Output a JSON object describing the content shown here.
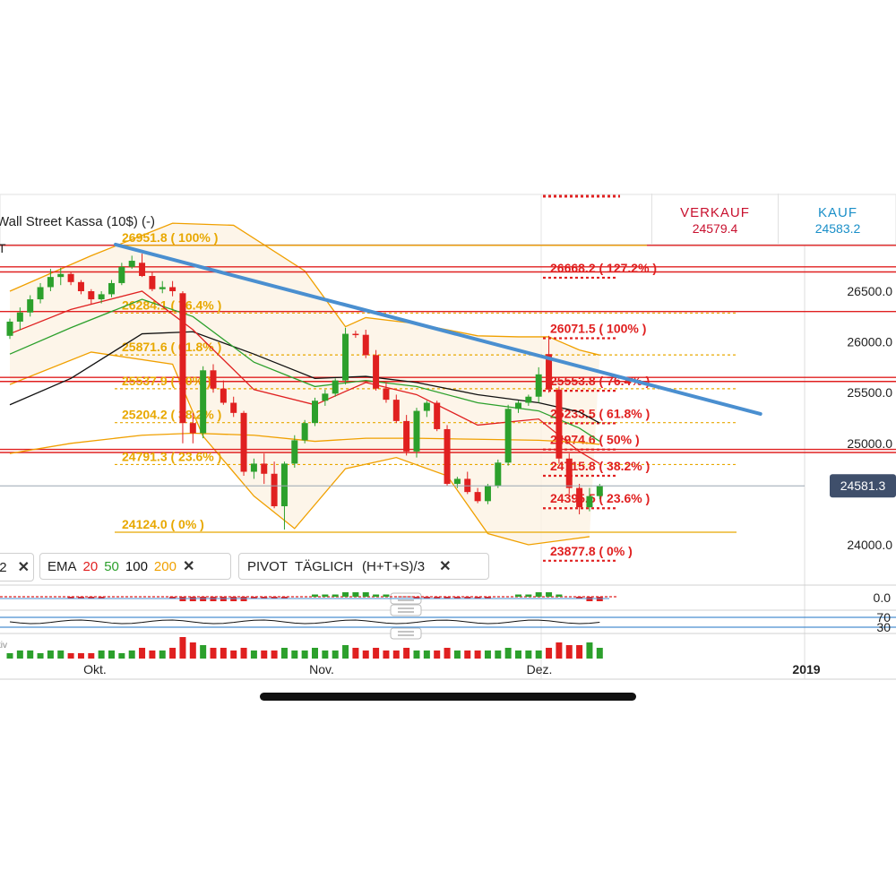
{
  "header": {
    "title": "Wall Street Kassa (10$) (-)",
    "sell_label": "VERKAUF",
    "sell_price": "24579.4",
    "buy_label": "KAUF",
    "buy_price": "24583.2",
    "left_fragment": "T"
  },
  "indicators": {
    "prev_fragment": "2",
    "ema_label": "EMA",
    "ema_periods": [
      "20",
      "50",
      "100",
      "200"
    ],
    "pivot_label": "PIVOT",
    "pivot_mode": "TÄGLICH",
    "pivot_formula": "(H+T+S)/3",
    "activity_fragment": "tiv"
  },
  "colors": {
    "up": "#2ca02c",
    "down": "#e02020",
    "ema20": "#e02020",
    "ema50": "#2ca02c",
    "ema100": "#111111",
    "ema200": "#f0a000",
    "fib_primary": "#e8a800",
    "fib_secondary": "#e02020",
    "trendline": "#4a8fd0",
    "pivot": "#e02020",
    "current_price_bg": "#3f4f6b"
  },
  "chart_data": {
    "type": "candlestick",
    "price_axis": {
      "ticks": [
        "26500.0",
        "26000.0",
        "25500.0",
        "25000.0",
        "24000.0"
      ],
      "current_price": "24581.3",
      "ylim": [
        23840,
        27200
      ]
    },
    "time_axis": {
      "labels": [
        "Okt.",
        "Nov.",
        "Dez.",
        "2019"
      ]
    },
    "fib_primary": [
      {
        "label": "26951.8 ( 100% )",
        "price": 26951.8
      },
      {
        "label": "26284.1 ( 76.4% )",
        "price": 26284.1
      },
      {
        "label": "25871.6 ( 61.8% )",
        "price": 25871.6
      },
      {
        "label": "25537.9 ( 50% )",
        "price": 25537.9
      },
      {
        "label": "25204.2 ( 38.2% )",
        "price": 25204.2
      },
      {
        "label": "24791.3 ( 23.6% )",
        "price": 24791.3
      },
      {
        "label": "24124.0 ( 0% )",
        "price": 24124.0
      }
    ],
    "fib_secondary": [
      {
        "label": "26668.2 ( 127.2% )",
        "price": 26668.2
      },
      {
        "label": "26071.5 ( 100% )",
        "price": 26071.5
      },
      {
        "label": "25553.8 ( 76.4% )",
        "price": 25553.8
      },
      {
        "label": "25233.5 ( 61.8% )",
        "price": 25233.5
      },
      {
        "label": "24974.6 ( 50% )",
        "price": 24974.6
      },
      {
        "label": "24715.8 ( 38.2% )",
        "price": 24715.8
      },
      {
        "label": "24395.5 ( 23.6% )",
        "price": 24395.5
      },
      {
        "label": "23877.8 ( 0% )",
        "price": 23877.8
      }
    ],
    "pivot_levels": [
      26951.8,
      26740,
      26690,
      26300,
      25650,
      25610,
      24940,
      24910
    ],
    "trendline": [
      [
        0,
        26960
      ],
      [
        40.5,
        25290
      ]
    ],
    "candles": [
      [
        26060,
        26230,
        26030,
        26200
      ],
      [
        26200,
        26340,
        26120,
        26290
      ],
      [
        26290,
        26460,
        26250,
        26420
      ],
      [
        26420,
        26580,
        26380,
        26540
      ],
      [
        26540,
        26720,
        26500,
        26640
      ],
      [
        26640,
        26730,
        26560,
        26670
      ],
      [
        26670,
        26690,
        26560,
        26590
      ],
      [
        26590,
        26610,
        26470,
        26500
      ],
      [
        26500,
        26520,
        26370,
        26420
      ],
      [
        26420,
        26500,
        26380,
        26470
      ],
      [
        26470,
        26610,
        26440,
        26580
      ],
      [
        26580,
        26780,
        26560,
        26740
      ],
      [
        26740,
        26850,
        26720,
        26800
      ],
      [
        26780,
        26870,
        26640,
        26650
      ],
      [
        26650,
        26690,
        26500,
        26520
      ],
      [
        26520,
        26600,
        26480,
        26540
      ],
      [
        26540,
        26600,
        26450,
        26500
      ],
      [
        26480,
        26500,
        25000,
        25200
      ],
      [
        25200,
        25300,
        25000,
        25100
      ],
      [
        25100,
        25760,
        25050,
        25720
      ],
      [
        25720,
        25780,
        25500,
        25540
      ],
      [
        25540,
        25620,
        25380,
        25400
      ],
      [
        25400,
        25460,
        25260,
        25300
      ],
      [
        25300,
        25320,
        24680,
        24720
      ],
      [
        24720,
        24850,
        24650,
        24800
      ],
      [
        24800,
        24900,
        24600,
        24700
      ],
      [
        24700,
        24820,
        24360,
        24380
      ],
      [
        24380,
        24820,
        24150,
        24800
      ],
      [
        24800,
        25080,
        24760,
        25030
      ],
      [
        25030,
        25230,
        25000,
        25200
      ],
      [
        25200,
        25450,
        25170,
        25420
      ],
      [
        25420,
        25530,
        25370,
        25490
      ],
      [
        25490,
        25640,
        25460,
        25620
      ],
      [
        25620,
        26140,
        25580,
        26080
      ],
      [
        26080,
        26110,
        26040,
        26070
      ],
      [
        26070,
        26120,
        25840,
        25870
      ],
      [
        25870,
        25920,
        25520,
        25540
      ],
      [
        25540,
        25600,
        25400,
        25430
      ],
      [
        25430,
        25480,
        25200,
        25220
      ],
      [
        25220,
        25280,
        24880,
        24920
      ],
      [
        24920,
        25350,
        24860,
        25320
      ],
      [
        25320,
        25420,
        25260,
        25400
      ],
      [
        25400,
        25420,
        25120,
        25140
      ],
      [
        25140,
        25180,
        24580,
        24600
      ],
      [
        24600,
        24670,
        24560,
        24650
      ],
      [
        24650,
        24720,
        24500,
        24520
      ],
      [
        24520,
        24560,
        24410,
        24430
      ],
      [
        24430,
        24600,
        24400,
        24580
      ],
      [
        24580,
        24840,
        24560,
        24810
      ],
      [
        24810,
        25380,
        24780,
        25340
      ],
      [
        25340,
        25420,
        25300,
        25400
      ],
      [
        25400,
        25480,
        25370,
        25460
      ],
      [
        25460,
        25750,
        25400,
        25680
      ],
      [
        25880,
        26060,
        25500,
        25530
      ],
      [
        25530,
        25560,
        24800,
        24850
      ],
      [
        24850,
        24900,
        24500,
        24560
      ],
      [
        24560,
        24600,
        24300,
        24370
      ],
      [
        24370,
        24560,
        24330,
        24480
      ],
      [
        24480,
        24600,
        24450,
        24580
      ]
    ],
    "ema_series": {
      "ema20": [
        [
          0,
          26080
        ],
        [
          6,
          26320
        ],
        [
          13,
          26500
        ],
        [
          18,
          26120
        ],
        [
          24,
          25530
        ],
        [
          30,
          25380
        ],
        [
          35,
          25600
        ],
        [
          40,
          25480
        ],
        [
          46,
          25180
        ],
        [
          52,
          25240
        ],
        [
          56,
          24920
        ],
        [
          58,
          24800
        ]
      ],
      "ema50": [
        [
          0,
          25880
        ],
        [
          6,
          26140
        ],
        [
          13,
          26420
        ],
        [
          18,
          26250
        ],
        [
          24,
          25800
        ],
        [
          30,
          25560
        ],
        [
          35,
          25620
        ],
        [
          40,
          25560
        ],
        [
          46,
          25400
        ],
        [
          52,
          25320
        ],
        [
          56,
          25150
        ],
        [
          58,
          25020
        ]
      ],
      "ema100": [
        [
          0,
          25380
        ],
        [
          6,
          25640
        ],
        [
          13,
          26080
        ],
        [
          18,
          26100
        ],
        [
          24,
          25880
        ],
        [
          30,
          25640
        ],
        [
          35,
          25660
        ],
        [
          40,
          25600
        ],
        [
          46,
          25480
        ],
        [
          52,
          25400
        ],
        [
          56,
          25310
        ],
        [
          58,
          25200
        ]
      ],
      "ema200": [
        [
          0,
          24900
        ],
        [
          6,
          25000
        ],
        [
          13,
          25080
        ],
        [
          18,
          25100
        ],
        [
          24,
          25080
        ],
        [
          30,
          25020
        ],
        [
          35,
          25050
        ],
        [
          40,
          25050
        ],
        [
          46,
          25040
        ],
        [
          52,
          25030
        ],
        [
          56,
          25010
        ],
        [
          58,
          24990
        ]
      ]
    },
    "bollinger": {
      "upper": [
        [
          0,
          26500
        ],
        [
          8,
          26850
        ],
        [
          16,
          27170
        ],
        [
          22,
          27150
        ],
        [
          29,
          26700
        ],
        [
          33,
          26150
        ],
        [
          35,
          26240
        ],
        [
          40,
          26180
        ],
        [
          46,
          26060
        ],
        [
          50,
          26050
        ],
        [
          53,
          26050
        ],
        [
          56,
          25920
        ],
        [
          58,
          25870
        ]
      ],
      "lower": [
        [
          0,
          25580
        ],
        [
          8,
          25900
        ],
        [
          16,
          25780
        ],
        [
          19,
          25070
        ],
        [
          24,
          24480
        ],
        [
          28,
          24160
        ],
        [
          33,
          24750
        ],
        [
          38,
          24860
        ],
        [
          43,
          24680
        ],
        [
          47,
          24110
        ],
        [
          51,
          24000
        ],
        [
          54,
          24040
        ],
        [
          57,
          24080
        ]
      ]
    },
    "macd_histogram": [
      0,
      0,
      0,
      0,
      0,
      0,
      -1,
      -1,
      -1,
      -1,
      0,
      0,
      0,
      0,
      0,
      0,
      -1,
      -2,
      -2,
      -2,
      -2,
      -2,
      -2,
      -2,
      -1,
      -1,
      -1,
      -1,
      0,
      0,
      1,
      1,
      1,
      2,
      2,
      2,
      1,
      1,
      0,
      0,
      -1,
      -1,
      -1,
      -1,
      -1,
      -1,
      -1,
      -1,
      0,
      0,
      1,
      1,
      2,
      2,
      1,
      0,
      -1,
      -2,
      -2
    ],
    "volume": [
      2,
      3,
      3,
      2,
      3,
      3,
      2,
      2,
      2,
      3,
      3,
      2,
      3,
      4,
      3,
      3,
      4,
      8,
      6,
      5,
      4,
      4,
      3,
      4,
      3,
      3,
      3,
      4,
      3,
      3,
      4,
      3,
      3,
      5,
      4,
      3,
      4,
      3,
      3,
      4,
      3,
      3,
      3,
      4,
      3,
      3,
      3,
      3,
      3,
      4,
      3,
      3,
      3,
      4,
      6,
      5,
      5,
      6,
      4
    ]
  }
}
